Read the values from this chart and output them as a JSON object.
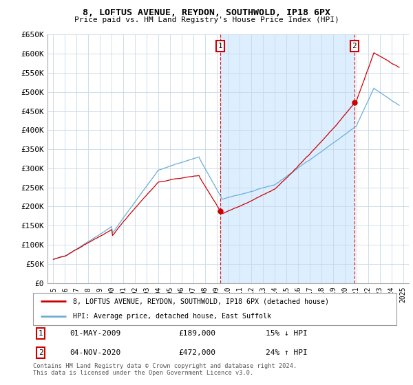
{
  "title": "8, LOFTUS AVENUE, REYDON, SOUTHWOLD, IP18 6PX",
  "subtitle": "Price paid vs. HM Land Registry's House Price Index (HPI)",
  "ylabel_ticks": [
    "£0",
    "£50K",
    "£100K",
    "£150K",
    "£200K",
    "£250K",
    "£300K",
    "£350K",
    "£400K",
    "£450K",
    "£500K",
    "£550K",
    "£600K",
    "£650K"
  ],
  "ylim": [
    0,
    650000
  ],
  "yticks": [
    0,
    50000,
    100000,
    150000,
    200000,
    250000,
    300000,
    350000,
    400000,
    450000,
    500000,
    550000,
    600000,
    650000
  ],
  "xlim": [
    1994.5,
    2025.5
  ],
  "xticks": [
    1995,
    1996,
    1997,
    1998,
    1999,
    2000,
    2001,
    2002,
    2003,
    2004,
    2005,
    2006,
    2007,
    2008,
    2009,
    2010,
    2011,
    2012,
    2013,
    2014,
    2015,
    2016,
    2017,
    2018,
    2019,
    2020,
    2021,
    2022,
    2023,
    2024,
    2025
  ],
  "hpi_color": "#6baed6",
  "price_color": "#cc0000",
  "shade_color": "#ddeeff",
  "marker1_x": 2009.33,
  "marker1_price": 189000,
  "marker1_date": "01-MAY-2009",
  "marker1_label": "15% ↓ HPI",
  "marker2_x": 2020.83,
  "marker2_price": 472000,
  "marker2_date": "04-NOV-2020",
  "marker2_label": "24% ↑ HPI",
  "legend_property": "8, LOFTUS AVENUE, REYDON, SOUTHWOLD, IP18 6PX (detached house)",
  "legend_hpi": "HPI: Average price, detached house, East Suffolk",
  "footer": "Contains HM Land Registry data © Crown copyright and database right 2024.\nThis data is licensed under the Open Government Licence v3.0.",
  "background_color": "#ffffff",
  "grid_color": "#c8d8e8"
}
